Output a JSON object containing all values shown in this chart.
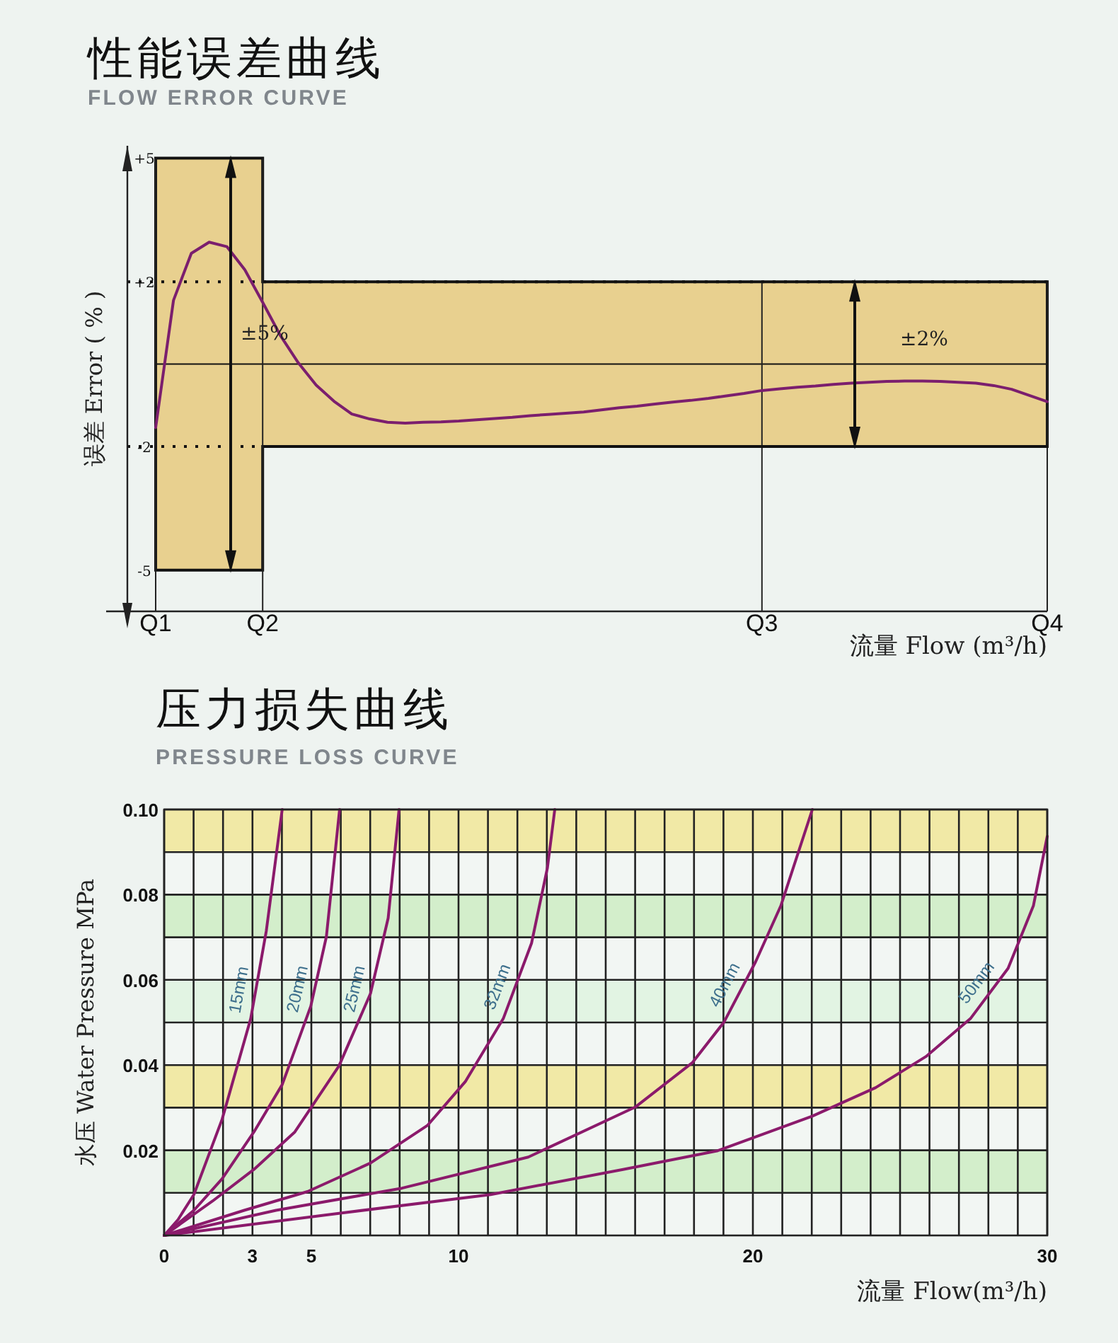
{
  "chart_data": [
    {
      "type": "line",
      "title": "性能误差曲线",
      "subtitle": "FLOW ERROR CURVE",
      "xlabel": "流量  Flow (m³/h)",
      "ylabel": "误差 Error ( % )",
      "categories": [
        "Q1",
        null,
        null,
        null,
        null,
        null,
        "Q2",
        null,
        null,
        null,
        null,
        null,
        null,
        null,
        null,
        null,
        null,
        null,
        null,
        null,
        null,
        null,
        null,
        null,
        null,
        null,
        null,
        null,
        null,
        null,
        null,
        null,
        null,
        null,
        "Q3",
        null,
        null,
        null,
        null,
        null,
        null,
        null,
        null,
        null,
        null,
        null,
        null,
        null,
        null,
        null,
        "Q4"
      ],
      "ylim": [
        -6,
        5.3
      ],
      "yticks": [
        {
          "value": 5,
          "label": "+5"
        },
        {
          "value": 2,
          "label": "+2"
        },
        -2,
        -5
      ],
      "grid": "x",
      "series": [
        {
          "type": "step",
          "color": "#111111",
          "values": [
            0,
            0,
            0,
            0,
            0,
            0,
            0,
            0,
            0,
            0,
            0,
            0,
            0,
            0,
            0,
            0,
            0,
            0,
            0,
            0,
            0,
            0,
            0,
            0,
            0,
            0,
            0,
            0,
            0,
            0,
            0,
            0,
            0,
            0,
            0,
            0,
            0,
            0,
            0,
            0,
            0,
            0,
            0,
            0,
            0,
            0,
            0,
            0,
            0,
            0,
            0
          ],
          "lower": [
            -5,
            -5,
            -5,
            -5,
            -5,
            -5,
            -2,
            -2,
            -2,
            -2,
            -2,
            -2,
            -2,
            -2,
            -2,
            -2,
            -2,
            -2,
            -2,
            -2,
            -2,
            -2,
            -2,
            -2,
            -2,
            -2,
            -2,
            -2,
            -2,
            -2,
            -2,
            -2,
            -2,
            -2,
            -2,
            -2,
            -2,
            -2,
            -2,
            -2,
            -2,
            -2,
            -2,
            -2,
            -2,
            -2,
            -2,
            -2,
            -2,
            -2,
            -2
          ],
          "upper": [
            5,
            5,
            5,
            5,
            5,
            5,
            2,
            2,
            2,
            2,
            2,
            2,
            2,
            2,
            2,
            2,
            2,
            2,
            2,
            2,
            2,
            2,
            2,
            2,
            2,
            2,
            2,
            2,
            2,
            2,
            2,
            2,
            2,
            2,
            2,
            2,
            2,
            2,
            2,
            2,
            2,
            2,
            2,
            2,
            2,
            2,
            2,
            2,
            2,
            2,
            2
          ]
        },
        {
          "color": "#7b1e6e",
          "values": [
            -1.54,
            1.55,
            2.69,
            2.96,
            2.85,
            2.29,
            1.5,
            0.69,
            0.03,
            -0.51,
            -0.9,
            -1.21,
            -1.33,
            -1.41,
            -1.43,
            -1.41,
            -1.4,
            -1.38,
            -1.35,
            -1.32,
            -1.29,
            -1.25,
            -1.22,
            -1.19,
            -1.16,
            -1.11,
            -1.06,
            -1.02,
            -0.97,
            -0.92,
            -0.88,
            -0.83,
            -0.77,
            -0.71,
            -0.64,
            -0.6,
            -0.56,
            -0.53,
            -0.49,
            -0.46,
            -0.44,
            -0.42,
            -0.41,
            -0.41,
            -0.42,
            -0.44,
            -0.46,
            -0.52,
            -0.61,
            -0.76,
            -0.91
          ]
        }
      ],
      "ref_lines": [
        {
          "axis": "y",
          "value": 2,
          "line_style": "dotted"
        },
        {
          "axis": "y",
          "value": -2,
          "line_style": "dotted"
        }
      ],
      "annotations": [
        "±5%",
        "±2%"
      ]
    },
    {
      "type": "line",
      "title": "压力损失曲线",
      "subtitle": "PRESSURE LOSS CURVE",
      "xlabel": "流量  Flow(m³/h)",
      "ylabel": "水压  Water Pressure  MPa",
      "xlim": [
        0,
        30
      ],
      "xticks": [
        0,
        {
          "value": 1,
          "label": null
        },
        {
          "value": 2,
          "label": null
        },
        3,
        {
          "value": 4,
          "label": null
        },
        5,
        {
          "value": 6,
          "label": null
        },
        {
          "value": 7,
          "label": null
        },
        {
          "value": 8,
          "label": null
        },
        {
          "value": 9,
          "label": null
        },
        10,
        {
          "value": 11,
          "label": null
        },
        {
          "value": 12,
          "label": null
        },
        {
          "value": 13,
          "label": null
        },
        {
          "value": 14,
          "label": null
        },
        {
          "value": 15,
          "label": null
        },
        {
          "value": 16,
          "label": null
        },
        {
          "value": 17,
          "label": null
        },
        {
          "value": 18,
          "label": null
        },
        {
          "value": 19,
          "label": null
        },
        20,
        {
          "value": 21,
          "label": null
        },
        {
          "value": 22,
          "label": null
        },
        {
          "value": 23,
          "label": null
        },
        {
          "value": 24,
          "label": null
        },
        {
          "value": 25,
          "label": null
        },
        {
          "value": 26,
          "label": null
        },
        {
          "value": 27,
          "label": null
        },
        {
          "value": 28,
          "label": null
        },
        {
          "value": 29,
          "label": null
        },
        30
      ],
      "ylim": [
        0,
        0.1
      ],
      "yticks": [
        {
          "value": 0.01,
          "label": null
        },
        0.02,
        {
          "value": 0.03,
          "label": null
        },
        0.04,
        {
          "value": 0.05,
          "label": null
        },
        0.06,
        {
          "value": 0.07,
          "label": null
        },
        0.08,
        {
          "value": 0.09,
          "label": null
        },
        {
          "value": 0.1,
          "label": "0.10"
        }
      ],
      "grid": true,
      "bands": [
        {
          "axis": "y",
          "from": 0.09,
          "to": 0.1,
          "color": "#f1e9a6"
        },
        {
          "axis": "y",
          "from": 0.07,
          "to": 0.08,
          "color": "#d3eecb"
        },
        {
          "axis": "y",
          "from": 0.05,
          "to": 0.06,
          "color": "#e2f4e3"
        },
        {
          "axis": "y",
          "from": 0.03,
          "to": 0.04,
          "color": "#f1e9a6"
        },
        {
          "axis": "y",
          "from": 0.01,
          "to": 0.02,
          "color": "#d3eecb"
        }
      ],
      "series": [
        {
          "name": "15mm",
          "color": "#8b1a6b",
          "x": [
            0,
            0.47,
            1.01,
            1.97,
            2.94,
            3.47,
            4.01
          ],
          "values": [
            0,
            0.0037,
            0.0096,
            0.0273,
            0.0509,
            0.0715,
            0.1
          ]
        },
        {
          "name": "20mm",
          "color": "#8b1a6b",
          "x": [
            0,
            1.01,
            1.97,
            3.05,
            4.01,
            4.98,
            5.51,
            5.96
          ],
          "values": [
            0,
            0.0059,
            0.0133,
            0.0243,
            0.0354,
            0.0538,
            0.0701,
            0.1
          ]
        },
        {
          "name": "25mm",
          "color": "#8b1a6b",
          "x": [
            0,
            1.65,
            3.05,
            4.44,
            5.94,
            7.01,
            7.61,
            7.98
          ],
          "values": [
            0,
            0.0081,
            0.0155,
            0.0243,
            0.0398,
            0.0568,
            0.0745,
            0.1
          ]
        },
        {
          "name": "32mm",
          "color": "#8b1a6b",
          "x": [
            0,
            2.72,
            4.87,
            7.01,
            8.94,
            10.23,
            11.52,
            12.48,
            13.02,
            13.27
          ],
          "values": [
            0,
            0.0059,
            0.0103,
            0.017,
            0.0258,
            0.0361,
            0.0509,
            0.0686,
            0.0863,
            0.1
          ]
        },
        {
          "name": "40mm",
          "color": "#8b1a6b",
          "x": [
            0,
            3.8,
            8.08,
            12.37,
            16.02,
            17.95,
            19.02,
            20.09,
            20.95,
            22.02
          ],
          "values": [
            0,
            0.0059,
            0.0111,
            0.0184,
            0.0302,
            0.0406,
            0.0501,
            0.0642,
            0.0774,
            0.1
          ]
        },
        {
          "name": "50mm",
          "color": "#8b1a6b",
          "x": [
            0,
            5.94,
            11.09,
            15.59,
            18.81,
            22.02,
            24.17,
            25.88,
            27.39,
            28.67,
            29.53,
            30.0
          ],
          "values": [
            0,
            0.0052,
            0.0096,
            0.0155,
            0.0199,
            0.028,
            0.0347,
            0.042,
            0.0509,
            0.0627,
            0.0774,
            0.0937
          ]
        }
      ]
    }
  ]
}
